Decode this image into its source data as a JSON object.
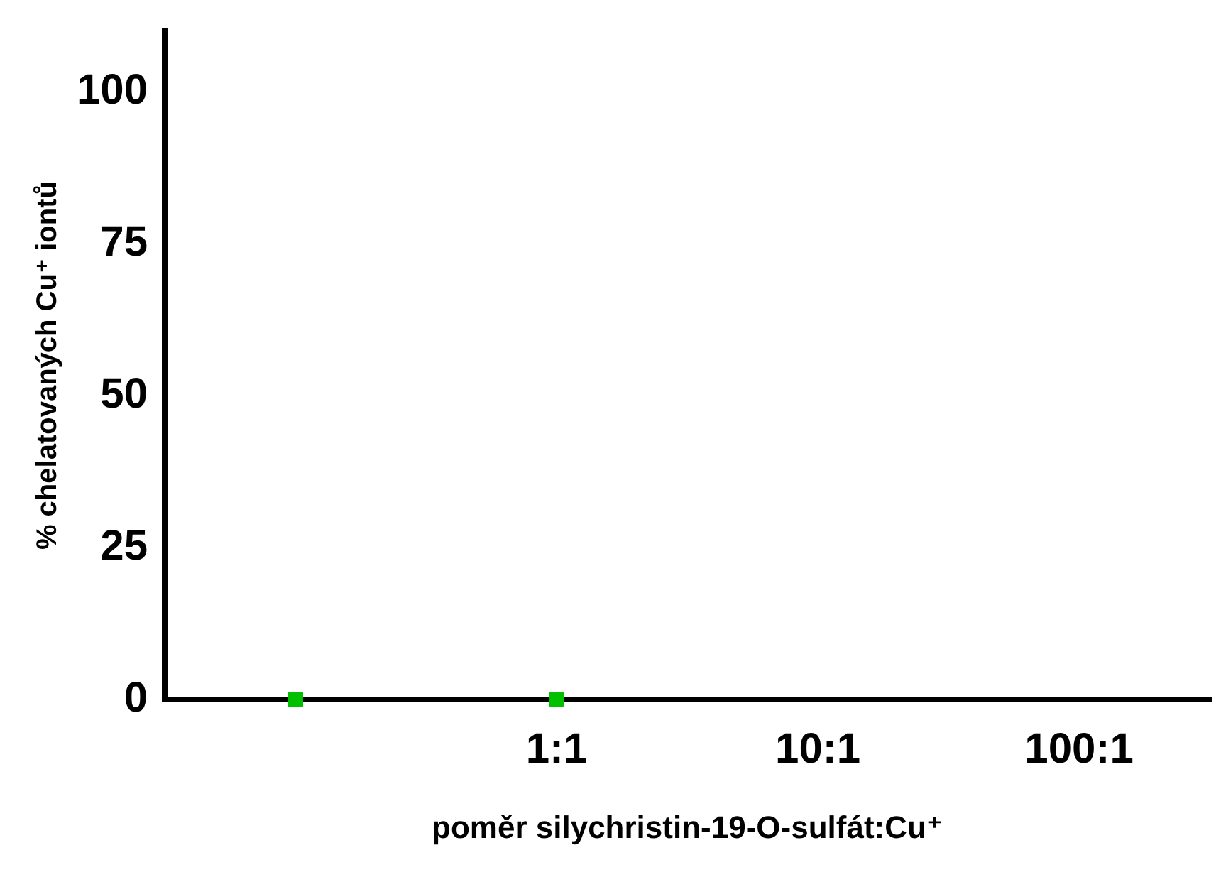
{
  "chart_data": {
    "type": "scatter",
    "xlabel": "poměr silychristin-19-O-sulfát:Cu⁺",
    "ylabel": "% chelatovaných Cu⁺ iontů",
    "categories": [
      null,
      "1:1",
      "10:1",
      "100:1"
    ],
    "values": [
      0,
      0,
      null,
      null
    ],
    "color": "#00c000",
    "marker": "square",
    "ylim": [
      0,
      110
    ],
    "yticks": [
      0,
      25,
      50,
      75,
      100
    ],
    "grid": false,
    "legend": false
  }
}
